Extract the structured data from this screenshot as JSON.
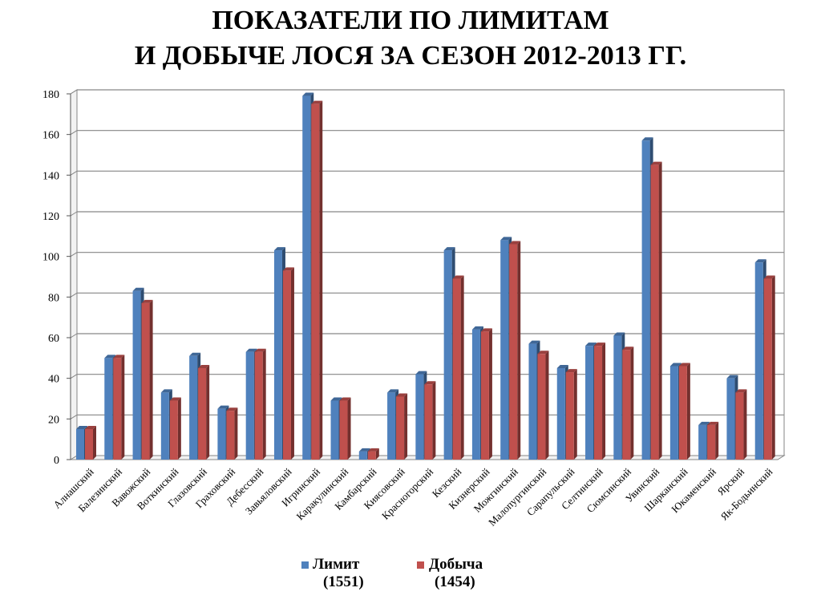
{
  "title_lines": [
    "ПОКАЗАТЕЛИ ПО ЛИМИТАМ",
    "И ДОБЫЧЕ ЛОСЯ ЗА СЕЗОН 2012-2013 ГГ."
  ],
  "colors": {
    "limit": "#4f81bd",
    "harvest": "#c0504d",
    "grid": "#868686",
    "wall": "#f2f2f2"
  },
  "legend": {
    "limit_label": "Лимит",
    "limit_total": "(1551)",
    "harvest_label": "Добыча",
    "harvest_total": "(1454)"
  },
  "chart_data": {
    "type": "bar",
    "title": "ПОКАЗАТЕЛИ ПО ЛИМИТАМ И ДОБЫЧЕ ЛОСЯ ЗА СЕЗОН 2012-2013 ГГ.",
    "ylim": [
      0,
      180
    ],
    "yticks": [
      0,
      20,
      40,
      60,
      80,
      100,
      120,
      140,
      160,
      180
    ],
    "grid": true,
    "legend_position": "bottom",
    "categories": [
      "Алнашский",
      "Балезинский",
      "Вавожский",
      "Воткинский",
      "Глазовский",
      "Граховский",
      "Дебесский",
      "Завьяловский",
      "Игринский",
      "Каракулинский",
      "Камбарский",
      "Киясовский",
      "Красногорский",
      "Кезский",
      "Кизнерский",
      "Можгинский",
      "Малопургинский",
      "Сарапульский",
      "Селтинский",
      "Сюмсинский",
      "Увинский",
      "Шарканский",
      "Юкаменский",
      "Ярский",
      "Як-Бодьинский"
    ],
    "series": [
      {
        "name": "Лимит",
        "values": [
          15,
          50,
          83,
          33,
          51,
          25,
          53,
          103,
          179,
          29,
          4,
          33,
          42,
          103,
          64,
          108,
          57,
          45,
          56,
          61,
          157,
          46,
          17,
          40,
          97
        ]
      },
      {
        "name": "Добыча",
        "values": [
          15,
          50,
          77,
          29,
          45,
          24,
          53,
          93,
          175,
          29,
          4,
          31,
          37,
          89,
          63,
          106,
          52,
          43,
          56,
          54,
          145,
          46,
          17,
          33,
          89
        ]
      }
    ]
  }
}
